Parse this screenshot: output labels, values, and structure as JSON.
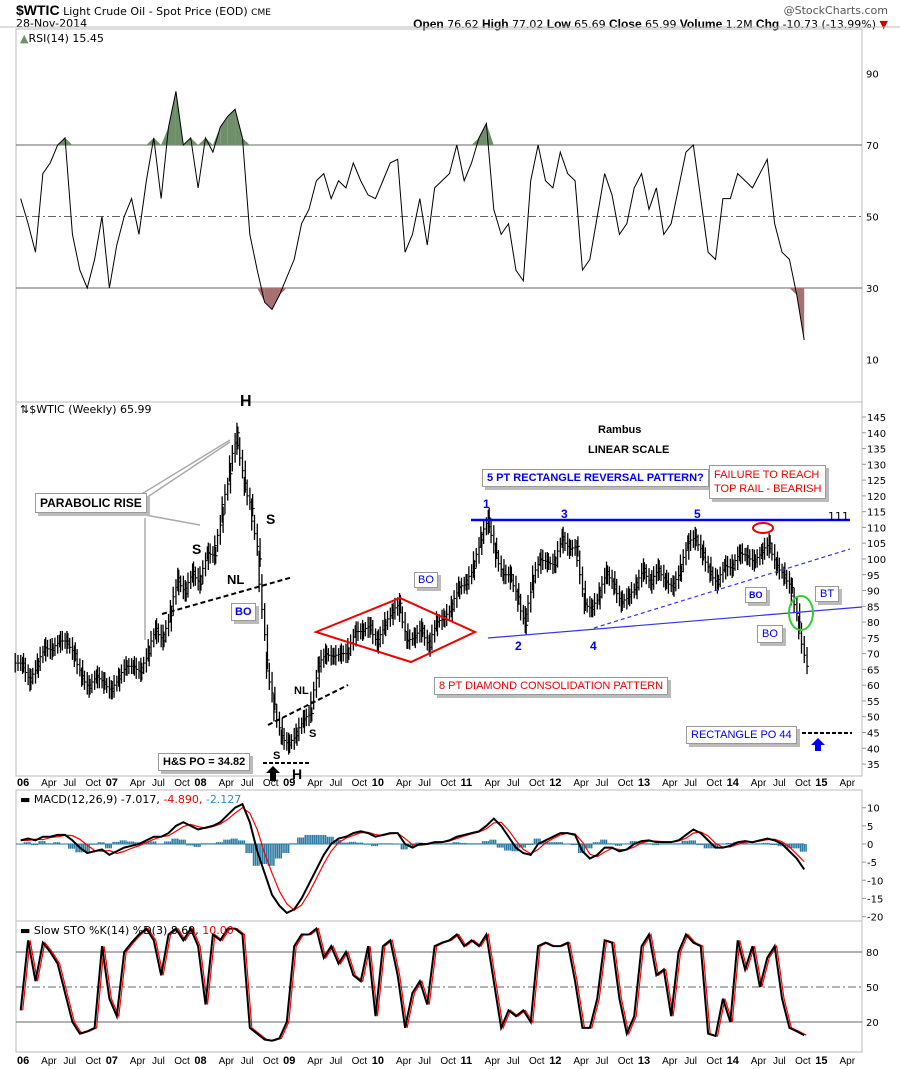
{
  "header": {
    "symbol": "$WTIC",
    "name": "Light Crude Oil - Spot Price (EOD)",
    "exchange": "CME",
    "date": "28-Nov-2014",
    "copyright": "@StockCharts.com",
    "quote": [
      {
        "k": "Open",
        "v": "76.62"
      },
      {
        "k": "High",
        "v": "77.02"
      },
      {
        "k": "Low",
        "v": "65.69"
      },
      {
        "k": "Close",
        "v": "65.99"
      },
      {
        "k": "Volume",
        "v": "1.2M"
      },
      {
        "k": "Chg",
        "v": "-10.73 (-13.99%)"
      }
    ],
    "change_icon": "down-triangle-icon"
  },
  "colors": {
    "up_fill": "#6e8f6a",
    "down_fill": "#a87070",
    "macd_hist": "#2a7aa3",
    "signal": "#ff0000",
    "blue_annot": "#0000ee",
    "red_annot": "#ee0000",
    "green_circle": "#33cc33"
  },
  "chart_data": [
    {
      "type": "line",
      "panel": "RSI",
      "label": "RSI(14) 15.45",
      "x_start": "Jan 2006",
      "x_end": "Nov 2014",
      "x_step": "month",
      "ylim": [
        0,
        100
      ],
      "yticks": [
        "90",
        "70",
        "50",
        "30",
        "10"
      ],
      "reference_lines": [
        70,
        50,
        30
      ],
      "values": [
        55,
        48,
        40,
        62,
        65,
        70,
        72,
        45,
        35,
        30,
        38,
        50,
        30,
        42,
        50,
        55,
        45,
        60,
        72,
        55,
        75,
        85,
        70,
        72,
        58,
        72,
        68,
        75,
        78,
        80,
        72,
        45,
        35,
        26,
        24,
        28,
        33,
        38,
        48,
        52,
        60,
        62,
        55,
        60,
        58,
        65,
        60,
        56,
        55,
        60,
        65,
        66,
        40,
        45,
        55,
        42,
        58,
        60,
        62,
        70,
        60,
        65,
        72,
        76,
        52,
        45,
        48,
        35,
        32,
        60,
        70,
        60,
        58,
        68,
        62,
        60,
        35,
        38,
        50,
        62,
        56,
        45,
        48,
        58,
        62,
        52,
        58,
        45,
        48,
        58,
        68,
        70,
        55,
        40,
        38,
        55,
        55,
        62,
        60,
        58,
        62,
        66,
        48,
        40,
        38,
        28,
        15.45
      ]
    },
    {
      "type": "ohlc",
      "panel": "Price",
      "label": "$WTIC (Weekly) 65.99",
      "x_start": "Jan 2006",
      "x_end": "Nov 2014",
      "x_step": "month",
      "ylim": [
        32,
        148
      ],
      "yticks": [
        "145",
        "140",
        "135",
        "130",
        "125",
        "120",
        "115",
        "110",
        "105",
        "100",
        "95",
        "90",
        "85",
        "80",
        "75",
        "70",
        "65",
        "60",
        "55",
        "50",
        "45",
        "40",
        "35"
      ],
      "close": [
        67,
        61,
        66,
        72,
        71,
        74,
        74,
        70,
        63,
        59,
        63,
        61,
        58,
        62,
        66,
        66,
        64,
        70,
        78,
        74,
        82,
        94,
        89,
        96,
        92,
        102,
        101,
        114,
        127,
        140,
        124,
        116,
        100,
        68,
        54,
        44,
        41,
        44,
        49,
        51,
        66,
        70,
        69,
        70,
        70,
        77,
        77,
        79,
        73,
        79,
        83,
        86,
        74,
        75,
        78,
        72,
        80,
        81,
        84,
        91,
        92,
        97,
        106,
        113,
        102,
        95,
        95,
        88,
        79,
        93,
        100,
        99,
        98,
        107,
        103,
        104,
        86,
        84,
        88,
        96,
        92,
        86,
        88,
        91,
        97,
        92,
        97,
        93,
        91,
        96,
        105,
        107,
        102,
        96,
        92,
        98,
        97,
        102,
        101,
        99,
        102,
        105,
        98,
        95,
        91,
        80,
        65.99
      ]
    },
    {
      "type": "line",
      "panel": "MACD",
      "label": "MACD(12,26,9) -7.017, -4.890, -2.127",
      "legend": {
        "macd": "-7.017",
        "signal": "-4.890",
        "histogram": "-2.127"
      },
      "x_start": "Jan 2006",
      "x_end": "Nov 2014",
      "x_step": "month",
      "ylim": [
        -21,
        13
      ],
      "yticks": [
        "10",
        "5",
        "0",
        "-5",
        "-10",
        "-15",
        "-20"
      ],
      "macd": [
        1,
        1.5,
        1,
        2,
        2,
        2.5,
        2.5,
        1,
        -1,
        -2.5,
        -2,
        -1.5,
        -3,
        -2,
        -1,
        -0.5,
        0,
        1,
        2,
        2,
        3,
        5,
        6,
        5,
        4,
        4.5,
        5,
        6,
        8,
        10,
        11,
        6,
        -2,
        -8,
        -14,
        -17,
        -19,
        -18,
        -15,
        -11,
        -7,
        -3,
        0,
        1.5,
        2,
        3,
        3.5,
        3,
        2,
        2.5,
        3,
        3,
        0,
        -1,
        0,
        0,
        0.5,
        0.5,
        1,
        2,
        2.5,
        3,
        3.5,
        5,
        7,
        5,
        2,
        -1,
        -2.5,
        -3,
        0,
        1,
        2,
        3,
        3,
        2.5,
        -2,
        -4,
        -3,
        -1,
        -1,
        -2,
        -1.5,
        0,
        0.8,
        1,
        0.5,
        0.5,
        0.5,
        1,
        2.5,
        4,
        3,
        1,
        -1,
        -1,
        -0.5,
        0.5,
        0.8,
        0.5,
        1,
        1.5,
        1,
        0,
        -2,
        -4,
        -7.017
      ],
      "signal": [
        1,
        1,
        1.3,
        1.2,
        1.8,
        2,
        2.4,
        2.3,
        1.3,
        -0.3,
        -1.8,
        -2,
        -1.8,
        -2.6,
        -2,
        -1.2,
        -0.5,
        0.4,
        1.3,
        2,
        2.3,
        3.5,
        4.8,
        5.4,
        4.8,
        4.3,
        4.8,
        5.5,
        6.8,
        8.5,
        10,
        8.5,
        4,
        -2.5,
        -8,
        -13,
        -16.5,
        -18.2,
        -16.8,
        -13.5,
        -9.5,
        -5.5,
        -2,
        0.4,
        1.6,
        2.4,
        3.1,
        3.2,
        2.6,
        2.3,
        2.8,
        3,
        1.5,
        -0.2,
        -0.4,
        -0.1,
        0.3,
        0.4,
        0.8,
        1.5,
        2.2,
        2.8,
        3.3,
        4.2,
        5.8,
        6,
        3.8,
        1,
        -1.5,
        -2.7,
        -1.5,
        0.3,
        1.5,
        2.5,
        3,
        2.8,
        0.5,
        -2.8,
        -3.5,
        -2.2,
        -1.2,
        -1.5,
        -1.6,
        -0.8,
        0.3,
        0.8,
        0.8,
        0.6,
        0.5,
        0.8,
        1.6,
        3,
        3.3,
        2.2,
        0.2,
        -0.9,
        -0.8,
        -0.1,
        0.5,
        0.6,
        0.8,
        1.2,
        1.3,
        0.6,
        -0.8,
        -2.8,
        -4.89
      ]
    },
    {
      "type": "line",
      "panel": "Slow STO",
      "label": "Slow STO %K(14) %D(3) 8.69, 10.00",
      "legend": {
        "k": "8.69",
        "d": "10.00"
      },
      "x_start": "Jan 2006",
      "x_end": "Nov 2014",
      "x_step": "month",
      "ylim": [
        -5,
        105
      ],
      "yticks": [
        "80",
        "50",
        "20"
      ],
      "reference_lines": [
        80,
        50,
        20
      ],
      "k": [
        30,
        90,
        55,
        88,
        80,
        70,
        45,
        20,
        10,
        12,
        15,
        85,
        40,
        25,
        80,
        88,
        95,
        100,
        90,
        60,
        95,
        100,
        90,
        100,
        85,
        35,
        95,
        90,
        100,
        100,
        95,
        15,
        10,
        5,
        4,
        6,
        20,
        85,
        95,
        95,
        100,
        75,
        85,
        70,
        80,
        60,
        55,
        85,
        25,
        85,
        90,
        60,
        15,
        45,
        55,
        35,
        85,
        88,
        90,
        95,
        85,
        90,
        85,
        95,
        55,
        15,
        30,
        25,
        30,
        20,
        85,
        88,
        85,
        85,
        88,
        55,
        15,
        15,
        40,
        90,
        88,
        40,
        10,
        25,
        85,
        95,
        60,
        65,
        25,
        80,
        95,
        88,
        85,
        10,
        8,
        40,
        20,
        90,
        65,
        85,
        50,
        75,
        85,
        40,
        15,
        12,
        8.69
      ]
    }
  ],
  "x_axis": {
    "labels": [
      "06",
      "Apr",
      "Jul",
      "Oct",
      "07",
      "Apr",
      "Jul",
      "Oct",
      "08",
      "Apr",
      "Jul",
      "Oct",
      "09",
      "Apr",
      "Jul",
      "Oct",
      "10",
      "Apr",
      "Jul",
      "Oct",
      "11",
      "Apr",
      "Jul",
      "Oct",
      "12",
      "Apr",
      "Jul",
      "Oct",
      "13",
      "Apr",
      "Jul",
      "Oct",
      "14",
      "Apr",
      "Jul",
      "Oct",
      "15",
      "Apr"
    ]
  },
  "annotations": {
    "rambus": "Rambus",
    "scale": "LINEAR SCALE",
    "parabolic": "PARABOLIC RISE",
    "h_top": "H",
    "s_left": "S",
    "s_right": "S",
    "nl1": "NL",
    "bo1": "BO",
    "nl2": "NL",
    "s2_left": "S",
    "s2_right": "S",
    "h_bottom": "H",
    "hs_po": "H&S  PO = 34.82",
    "bo_diamond": "BO",
    "diamond": "8 PT DIAMOND CONSOLIDATION PATTERN",
    "rectangle": "5 PT RECTANGLE REVERSAL PATTERN?",
    "failure1": "FAILURE TO REACH",
    "failure2": "TOP RAIL - BEARISH",
    "p1": "1",
    "p2": "2",
    "p3": "3",
    "p4": "4",
    "p5": "5",
    "rail": "111",
    "bo_small": "BO",
    "bo_rect": "BO",
    "bt": "BT",
    "rect_po": "RECTANGLE PO 44"
  }
}
